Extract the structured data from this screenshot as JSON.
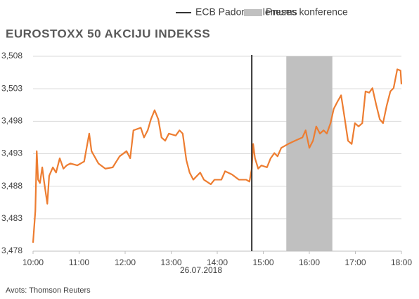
{
  "chart_data": {
    "type": "line",
    "title": "EUROSTOXX 50 AKCIJU INDEKSS",
    "xlabel": "26.07.2018",
    "source": "Avots: Thomson Reuters",
    "decision": {
      "name": "ECB Padomes lēmums",
      "x": 14.75,
      "color": "#333333"
    },
    "press_conference": {
      "name": "Preses konference",
      "x": [
        15.5,
        16.5
      ],
      "color": "#c0c0c0"
    },
    "xlim": [
      10,
      18
    ],
    "xticks": [
      {
        "value": 10,
        "label": "10:00"
      },
      {
        "value": 11,
        "label": "11:00"
      },
      {
        "value": 12,
        "label": "12:00"
      },
      {
        "value": 13,
        "label": "13:00"
      },
      {
        "value": 14,
        "label": "14:00"
      },
      {
        "value": 15,
        "label": "15:00"
      },
      {
        "value": 16,
        "label": "16:00"
      },
      {
        "value": 17,
        "label": "17:00"
      },
      {
        "value": 18,
        "label": "18:00"
      }
    ],
    "ylim": [
      3478,
      3508
    ],
    "yticks": [
      {
        "value": 3478,
        "label": "3,478"
      },
      {
        "value": 3483,
        "label": "3,483"
      },
      {
        "value": 3488,
        "label": "3,488"
      },
      {
        "value": 3493,
        "label": "3,493"
      },
      {
        "value": 3498,
        "label": "3,498"
      },
      {
        "value": 3503,
        "label": "3,503"
      },
      {
        "value": 3508,
        "label": "3,508"
      }
    ],
    "grid": true,
    "x": [
      10.0,
      10.05,
      10.08,
      10.11,
      10.15,
      10.2,
      10.24,
      10.31,
      10.35,
      10.43,
      10.5,
      10.58,
      10.66,
      10.73,
      10.81,
      10.96,
      11.11,
      11.22,
      11.27,
      11.42,
      11.57,
      11.73,
      11.88,
      12.03,
      12.11,
      12.18,
      12.34,
      12.41,
      12.49,
      12.56,
      12.64,
      12.72,
      12.79,
      12.87,
      12.95,
      13.1,
      13.18,
      13.25,
      13.33,
      13.4,
      13.48,
      13.63,
      13.71,
      13.86,
      13.94,
      14.09,
      14.17,
      14.32,
      14.47,
      14.63,
      14.7,
      14.75,
      14.78,
      14.82,
      14.89,
      14.96,
      15.08,
      15.16,
      15.24,
      15.31,
      15.39,
      15.54,
      15.69,
      15.85,
      15.92,
      16.0,
      16.08,
      16.15,
      16.23,
      16.31,
      16.38,
      16.46,
      16.53,
      16.61,
      16.69,
      16.76,
      16.84,
      16.92,
      16.99,
      17.07,
      17.15,
      17.22,
      17.3,
      17.37,
      17.45,
      17.53,
      17.6,
      17.68,
      17.76,
      17.83,
      17.91,
      17.98,
      18.0
    ],
    "series": [
      {
        "color": "#ed7d31",
        "values": [
          3479.3,
          3484.2,
          3493.4,
          3489.0,
          3488.5,
          3490.9,
          3488.7,
          3485.3,
          3489.6,
          3490.9,
          3490.1,
          3492.3,
          3490.7,
          3491.2,
          3491.5,
          3491.2,
          3491.8,
          3496.1,
          3493.4,
          3491.5,
          3490.7,
          3490.9,
          3492.6,
          3493.4,
          3492.3,
          3496.6,
          3497.0,
          3495.5,
          3496.6,
          3498.3,
          3499.7,
          3498.3,
          3495.5,
          3495.0,
          3496.1,
          3495.8,
          3496.6,
          3496.1,
          3492.0,
          3490.1,
          3489.0,
          3490.1,
          3489.0,
          3488.3,
          3489.0,
          3489.0,
          3490.3,
          3489.8,
          3489.0,
          3489.0,
          3488.7,
          3490.7,
          3494.5,
          3492.3,
          3490.7,
          3491.2,
          3490.9,
          3492.3,
          3493.1,
          3492.6,
          3493.9,
          3494.5,
          3495.0,
          3495.5,
          3496.6,
          3493.9,
          3495.0,
          3497.2,
          3496.1,
          3496.6,
          3496.1,
          3497.7,
          3499.9,
          3501.0,
          3502.0,
          3498.8,
          3495.0,
          3494.5,
          3497.7,
          3497.2,
          3497.7,
          3502.6,
          3502.4,
          3503.1,
          3500.6,
          3498.3,
          3497.7,
          3500.4,
          3502.6,
          3503.1,
          3506.0,
          3505.8,
          3503.7
        ]
      }
    ]
  }
}
